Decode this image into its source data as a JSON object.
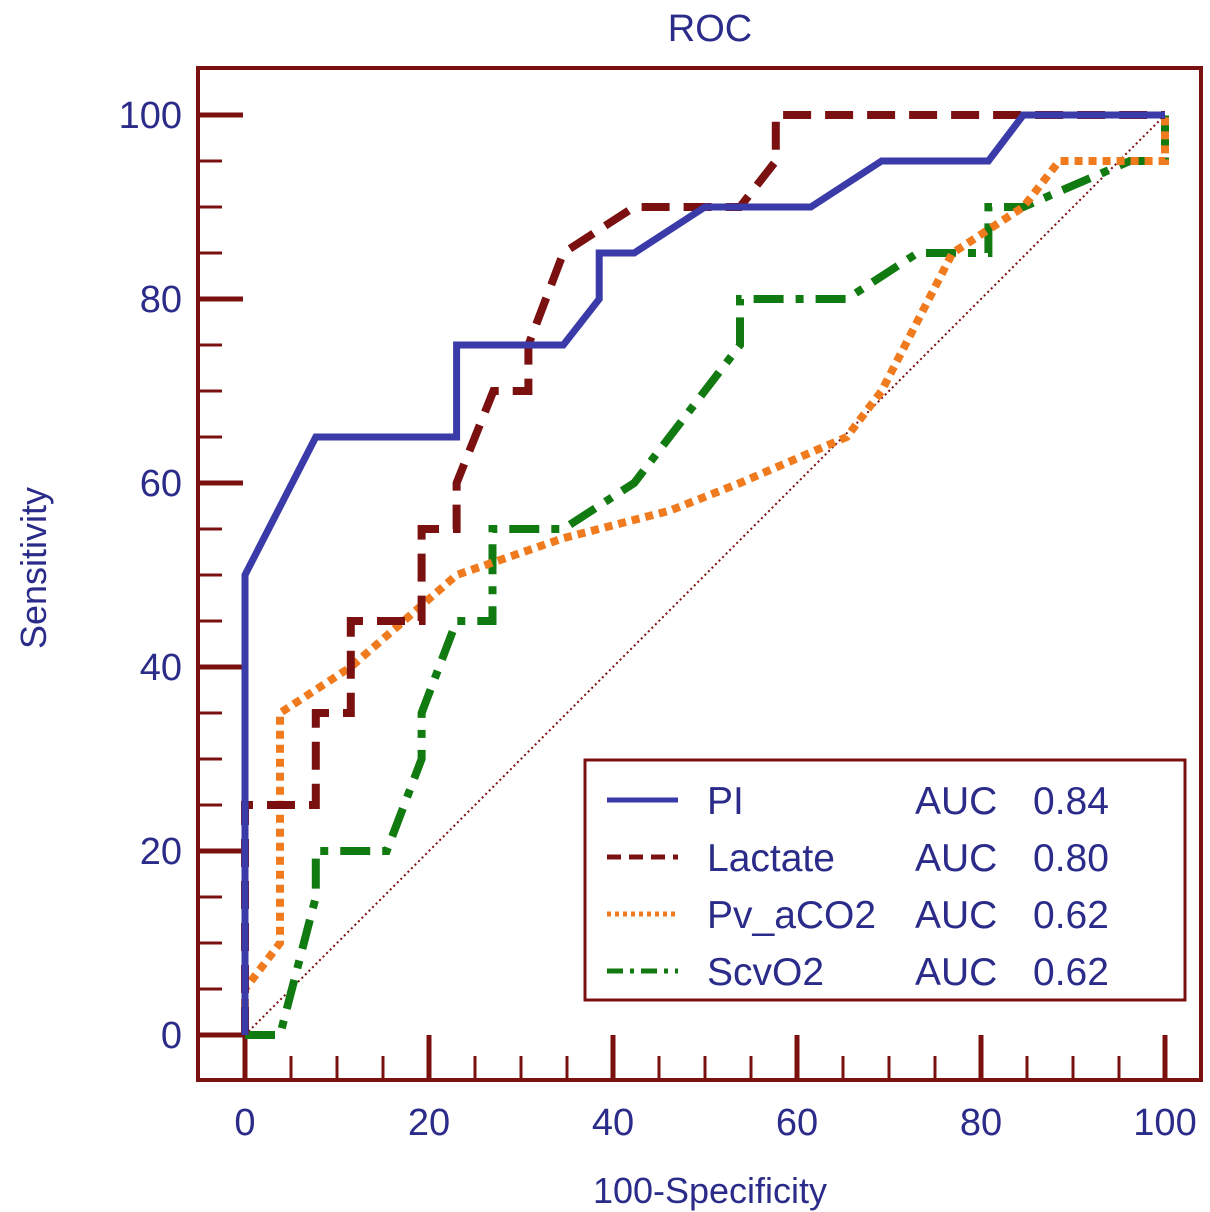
{
  "colors": {
    "frame": "#7a1010",
    "text": "#2b2b8a",
    "pi": "#3a3aa8",
    "lactate": "#7a1010",
    "pv_aco2": "#f07a1e",
    "scvo2": "#117a11",
    "reference": "#7a1010"
  },
  "chart_data": {
    "type": "line",
    "title": "ROC",
    "xlabel": "100-Specificity",
    "ylabel": "Sensitivity",
    "xlim": [
      -5,
      105
    ],
    "ylim": [
      -5,
      105
    ],
    "xticks": [
      0,
      20,
      40,
      60,
      80,
      100
    ],
    "yticks": [
      0,
      20,
      40,
      60,
      80,
      100
    ],
    "grid": false,
    "legend_position": "bottom-right",
    "reference_line": [
      [
        0,
        0
      ],
      [
        100,
        100
      ]
    ],
    "series": [
      {
        "name": "PI",
        "auc_label": "AUC",
        "auc": "0.84",
        "color": "#3a3aa8",
        "style": "solid",
        "points": [
          [
            0,
            0
          ],
          [
            0,
            50
          ],
          [
            7.7,
            65
          ],
          [
            23,
            65
          ],
          [
            23,
            75
          ],
          [
            34.6,
            75
          ],
          [
            38.5,
            80
          ],
          [
            38.5,
            85
          ],
          [
            42.3,
            85
          ],
          [
            50,
            90
          ],
          [
            61.5,
            90
          ],
          [
            69.2,
            95
          ],
          [
            80.8,
            95
          ],
          [
            84.6,
            100
          ],
          [
            100,
            100
          ]
        ]
      },
      {
        "name": "Lactate",
        "auc_label": "AUC",
        "auc": "0.80",
        "color": "#7a1010",
        "style": "dashed",
        "points": [
          [
            0,
            0
          ],
          [
            0,
            25
          ],
          [
            7.7,
            25
          ],
          [
            7.7,
            35
          ],
          [
            11.5,
            35
          ],
          [
            11.5,
            45
          ],
          [
            19.2,
            45
          ],
          [
            19.2,
            55
          ],
          [
            23,
            55
          ],
          [
            23,
            60
          ],
          [
            27,
            70
          ],
          [
            30.8,
            70
          ],
          [
            30.8,
            75
          ],
          [
            34.6,
            85
          ],
          [
            42.3,
            90
          ],
          [
            53.8,
            90
          ],
          [
            57.7,
            95
          ],
          [
            57.7,
            100
          ],
          [
            100,
            100
          ]
        ]
      },
      {
        "name": "Pv_aCO2",
        "auc_label": "AUC",
        "auc": "0.62",
        "color": "#f07a1e",
        "style": "dotted",
        "points": [
          [
            0,
            0
          ],
          [
            0,
            5
          ],
          [
            3.8,
            10
          ],
          [
            3.8,
            35
          ],
          [
            11.5,
            40
          ],
          [
            23,
            50
          ],
          [
            34.6,
            54
          ],
          [
            46.2,
            57
          ],
          [
            53.8,
            60
          ],
          [
            65.4,
            65
          ],
          [
            69.2,
            70
          ],
          [
            76.9,
            85
          ],
          [
            84.6,
            90
          ],
          [
            88.5,
            95
          ],
          [
            100,
            95
          ],
          [
            100,
            100
          ]
        ]
      },
      {
        "name": "ScvO2",
        "auc_label": "AUC",
        "auc": "0.62",
        "color": "#117a11",
        "style": "dashdot",
        "points": [
          [
            0,
            0
          ],
          [
            3.8,
            0
          ],
          [
            7.7,
            15
          ],
          [
            7.7,
            20
          ],
          [
            15.4,
            20
          ],
          [
            19.2,
            30
          ],
          [
            19.2,
            35
          ],
          [
            23,
            45
          ],
          [
            26.9,
            45
          ],
          [
            26.9,
            55
          ],
          [
            34.6,
            55
          ],
          [
            42.3,
            60
          ],
          [
            53.8,
            75
          ],
          [
            53.8,
            80
          ],
          [
            65.4,
            80
          ],
          [
            73.1,
            85
          ],
          [
            80.8,
            85
          ],
          [
            80.8,
            90
          ],
          [
            84.6,
            90
          ],
          [
            96.2,
            95
          ],
          [
            100,
            95
          ],
          [
            100,
            100
          ]
        ]
      }
    ]
  }
}
